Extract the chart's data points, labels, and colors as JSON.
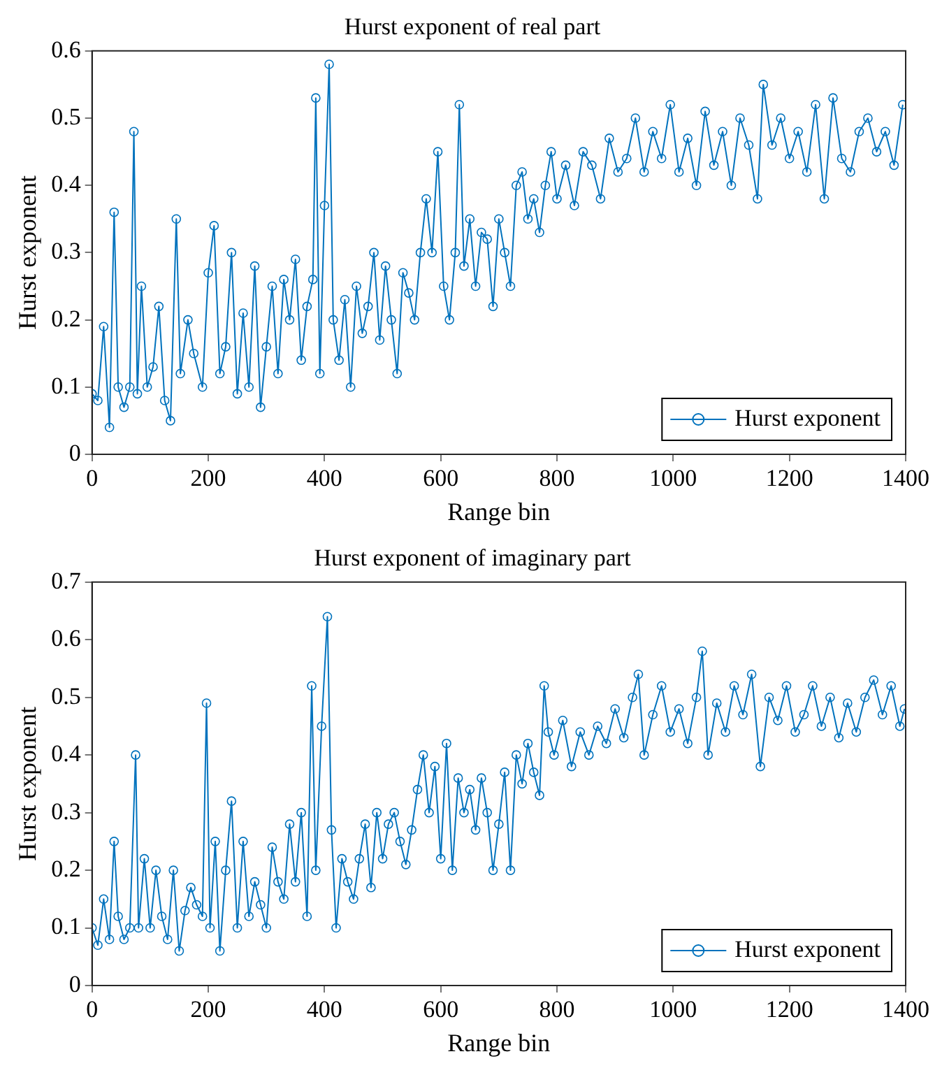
{
  "chart_data": [
    {
      "type": "line",
      "title": "Hurst exponent of real part",
      "xlabel": "Range bin",
      "ylabel": "Hurst exponent",
      "xlim": [
        0,
        1400
      ],
      "xticks": [
        0,
        200,
        400,
        600,
        800,
        1000,
        1200,
        1400
      ],
      "ylim": [
        0,
        0.6
      ],
      "yticks": [
        0,
        0.1,
        0.2,
        0.3,
        0.4,
        0.5,
        0.6
      ],
      "grid": false,
      "legend": "bottom right",
      "marker": "circle",
      "line_style": "solid",
      "series": [
        {
          "name": "Hurst exponent",
          "color": "#0072bd",
          "x": [
            0,
            10,
            20,
            30,
            38,
            45,
            55,
            65,
            72,
            78,
            85,
            95,
            105,
            115,
            125,
            135,
            145,
            152,
            165,
            175,
            190,
            200,
            210,
            220,
            230,
            240,
            250,
            260,
            270,
            280,
            290,
            300,
            310,
            320,
            330,
            340,
            350,
            360,
            370,
            380,
            385,
            392,
            400,
            408,
            415,
            425,
            435,
            445,
            455,
            465,
            475,
            485,
            495,
            505,
            515,
            525,
            535,
            545,
            555,
            565,
            575,
            585,
            595,
            605,
            615,
            625,
            632,
            640,
            650,
            660,
            670,
            680,
            690,
            700,
            710,
            720,
            730,
            740,
            750,
            760,
            770,
            780,
            790,
            800,
            815,
            830,
            845,
            860,
            875,
            890,
            905,
            920,
            935,
            950,
            965,
            980,
            995,
            1010,
            1025,
            1040,
            1055,
            1070,
            1085,
            1100,
            1115,
            1130,
            1145,
            1155,
            1170,
            1185,
            1200,
            1215,
            1230,
            1245,
            1260,
            1275,
            1290,
            1305,
            1320,
            1335,
            1350,
            1365,
            1380,
            1395
          ],
          "values": [
            0.09,
            0.08,
            0.19,
            0.04,
            0.36,
            0.1,
            0.07,
            0.1,
            0.48,
            0.09,
            0.25,
            0.1,
            0.13,
            0.22,
            0.08,
            0.05,
            0.35,
            0.12,
            0.2,
            0.15,
            0.1,
            0.27,
            0.34,
            0.12,
            0.16,
            0.3,
            0.09,
            0.21,
            0.1,
            0.28,
            0.07,
            0.16,
            0.25,
            0.12,
            0.26,
            0.2,
            0.29,
            0.14,
            0.22,
            0.26,
            0.53,
            0.12,
            0.37,
            0.58,
            0.2,
            0.14,
            0.23,
            0.1,
            0.25,
            0.18,
            0.22,
            0.3,
            0.17,
            0.28,
            0.2,
            0.12,
            0.27,
            0.24,
            0.2,
            0.3,
            0.38,
            0.3,
            0.45,
            0.25,
            0.2,
            0.3,
            0.52,
            0.28,
            0.35,
            0.25,
            0.33,
            0.32,
            0.22,
            0.35,
            0.3,
            0.25,
            0.4,
            0.42,
            0.35,
            0.38,
            0.33,
            0.4,
            0.45,
            0.38,
            0.43,
            0.37,
            0.45,
            0.43,
            0.38,
            0.47,
            0.42,
            0.44,
            0.5,
            0.42,
            0.48,
            0.44,
            0.52,
            0.42,
            0.47,
            0.4,
            0.51,
            0.43,
            0.48,
            0.4,
            0.5,
            0.46,
            0.38,
            0.55,
            0.46,
            0.5,
            0.44,
            0.48,
            0.42,
            0.52,
            0.38,
            0.53,
            0.44,
            0.42,
            0.48,
            0.5,
            0.45,
            0.48,
            0.43,
            0.52
          ]
        }
      ]
    },
    {
      "type": "line",
      "title": "Hurst exponent of imaginary part",
      "xlabel": "Range bin",
      "ylabel": "Hurst exponent",
      "xlim": [
        0,
        1400
      ],
      "xticks": [
        0,
        200,
        400,
        600,
        800,
        1000,
        1200,
        1400
      ],
      "ylim": [
        0,
        0.7
      ],
      "yticks": [
        0,
        0.1,
        0.2,
        0.3,
        0.4,
        0.5,
        0.6,
        0.7
      ],
      "grid": false,
      "legend": "bottom right",
      "marker": "circle",
      "line_style": "solid",
      "series": [
        {
          "name": "Hurst exponent",
          "color": "#0072bd",
          "x": [
            0,
            10,
            20,
            30,
            38,
            45,
            55,
            65,
            75,
            80,
            90,
            100,
            110,
            120,
            130,
            140,
            150,
            160,
            170,
            180,
            190,
            197,
            203,
            212,
            220,
            230,
            240,
            250,
            260,
            270,
            280,
            290,
            300,
            310,
            320,
            330,
            340,
            350,
            360,
            370,
            378,
            385,
            395,
            405,
            412,
            420,
            430,
            440,
            450,
            460,
            470,
            480,
            490,
            500,
            510,
            520,
            530,
            540,
            550,
            560,
            570,
            580,
            590,
            600,
            610,
            620,
            630,
            640,
            650,
            660,
            670,
            680,
            690,
            700,
            710,
            720,
            730,
            740,
            750,
            760,
            770,
            778,
            785,
            795,
            810,
            825,
            840,
            855,
            870,
            885,
            900,
            915,
            930,
            940,
            950,
            965,
            980,
            995,
            1010,
            1025,
            1040,
            1050,
            1060,
            1075,
            1090,
            1105,
            1120,
            1135,
            1150,
            1165,
            1180,
            1195,
            1210,
            1225,
            1240,
            1255,
            1270,
            1285,
            1300,
            1315,
            1330,
            1345,
            1360,
            1375,
            1390,
            1398
          ],
          "values": [
            0.1,
            0.07,
            0.15,
            0.08,
            0.25,
            0.12,
            0.08,
            0.1,
            0.4,
            0.1,
            0.22,
            0.1,
            0.2,
            0.12,
            0.08,
            0.2,
            0.06,
            0.13,
            0.17,
            0.14,
            0.12,
            0.49,
            0.1,
            0.25,
            0.06,
            0.2,
            0.32,
            0.1,
            0.25,
            0.12,
            0.18,
            0.14,
            0.1,
            0.24,
            0.18,
            0.15,
            0.28,
            0.18,
            0.3,
            0.12,
            0.52,
            0.2,
            0.45,
            0.64,
            0.27,
            0.1,
            0.22,
            0.18,
            0.15,
            0.22,
            0.28,
            0.17,
            0.3,
            0.22,
            0.28,
            0.3,
            0.25,
            0.21,
            0.27,
            0.34,
            0.4,
            0.3,
            0.38,
            0.22,
            0.42,
            0.2,
            0.36,
            0.3,
            0.34,
            0.27,
            0.36,
            0.3,
            0.2,
            0.28,
            0.37,
            0.2,
            0.4,
            0.35,
            0.42,
            0.37,
            0.33,
            0.52,
            0.44,
            0.4,
            0.46,
            0.38,
            0.44,
            0.4,
            0.45,
            0.42,
            0.48,
            0.43,
            0.5,
            0.54,
            0.4,
            0.47,
            0.52,
            0.44,
            0.48,
            0.42,
            0.5,
            0.58,
            0.4,
            0.49,
            0.44,
            0.52,
            0.47,
            0.54,
            0.38,
            0.5,
            0.46,
            0.52,
            0.44,
            0.47,
            0.52,
            0.45,
            0.5,
            0.43,
            0.49,
            0.44,
            0.5,
            0.53,
            0.47,
            0.52,
            0.45,
            0.48
          ]
        }
      ]
    }
  ]
}
